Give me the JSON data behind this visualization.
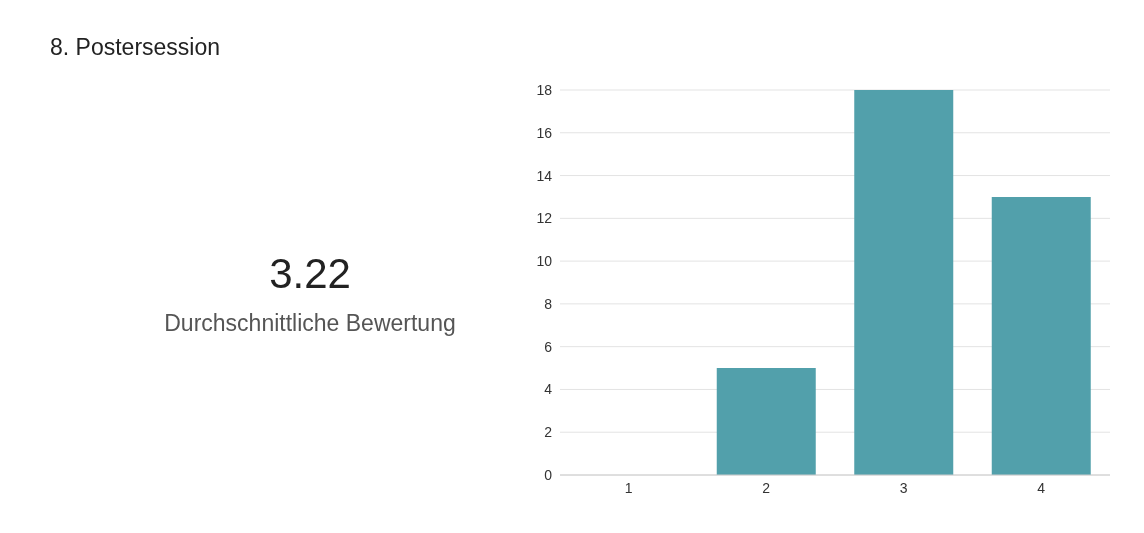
{
  "chart_data": {
    "type": "bar",
    "title": "8.  Postersession",
    "annotations": [
      "3.22",
      "Durchschnittliche Bewertung"
    ],
    "categories": [
      "1",
      "2",
      "3",
      "4"
    ],
    "values": [
      0,
      5,
      18,
      13
    ],
    "color": "#52a0ab",
    "ylim": [
      0,
      18
    ],
    "yticks": [
      0,
      2,
      4,
      6,
      8,
      10,
      12,
      14,
      16,
      18
    ],
    "grid": "y"
  }
}
